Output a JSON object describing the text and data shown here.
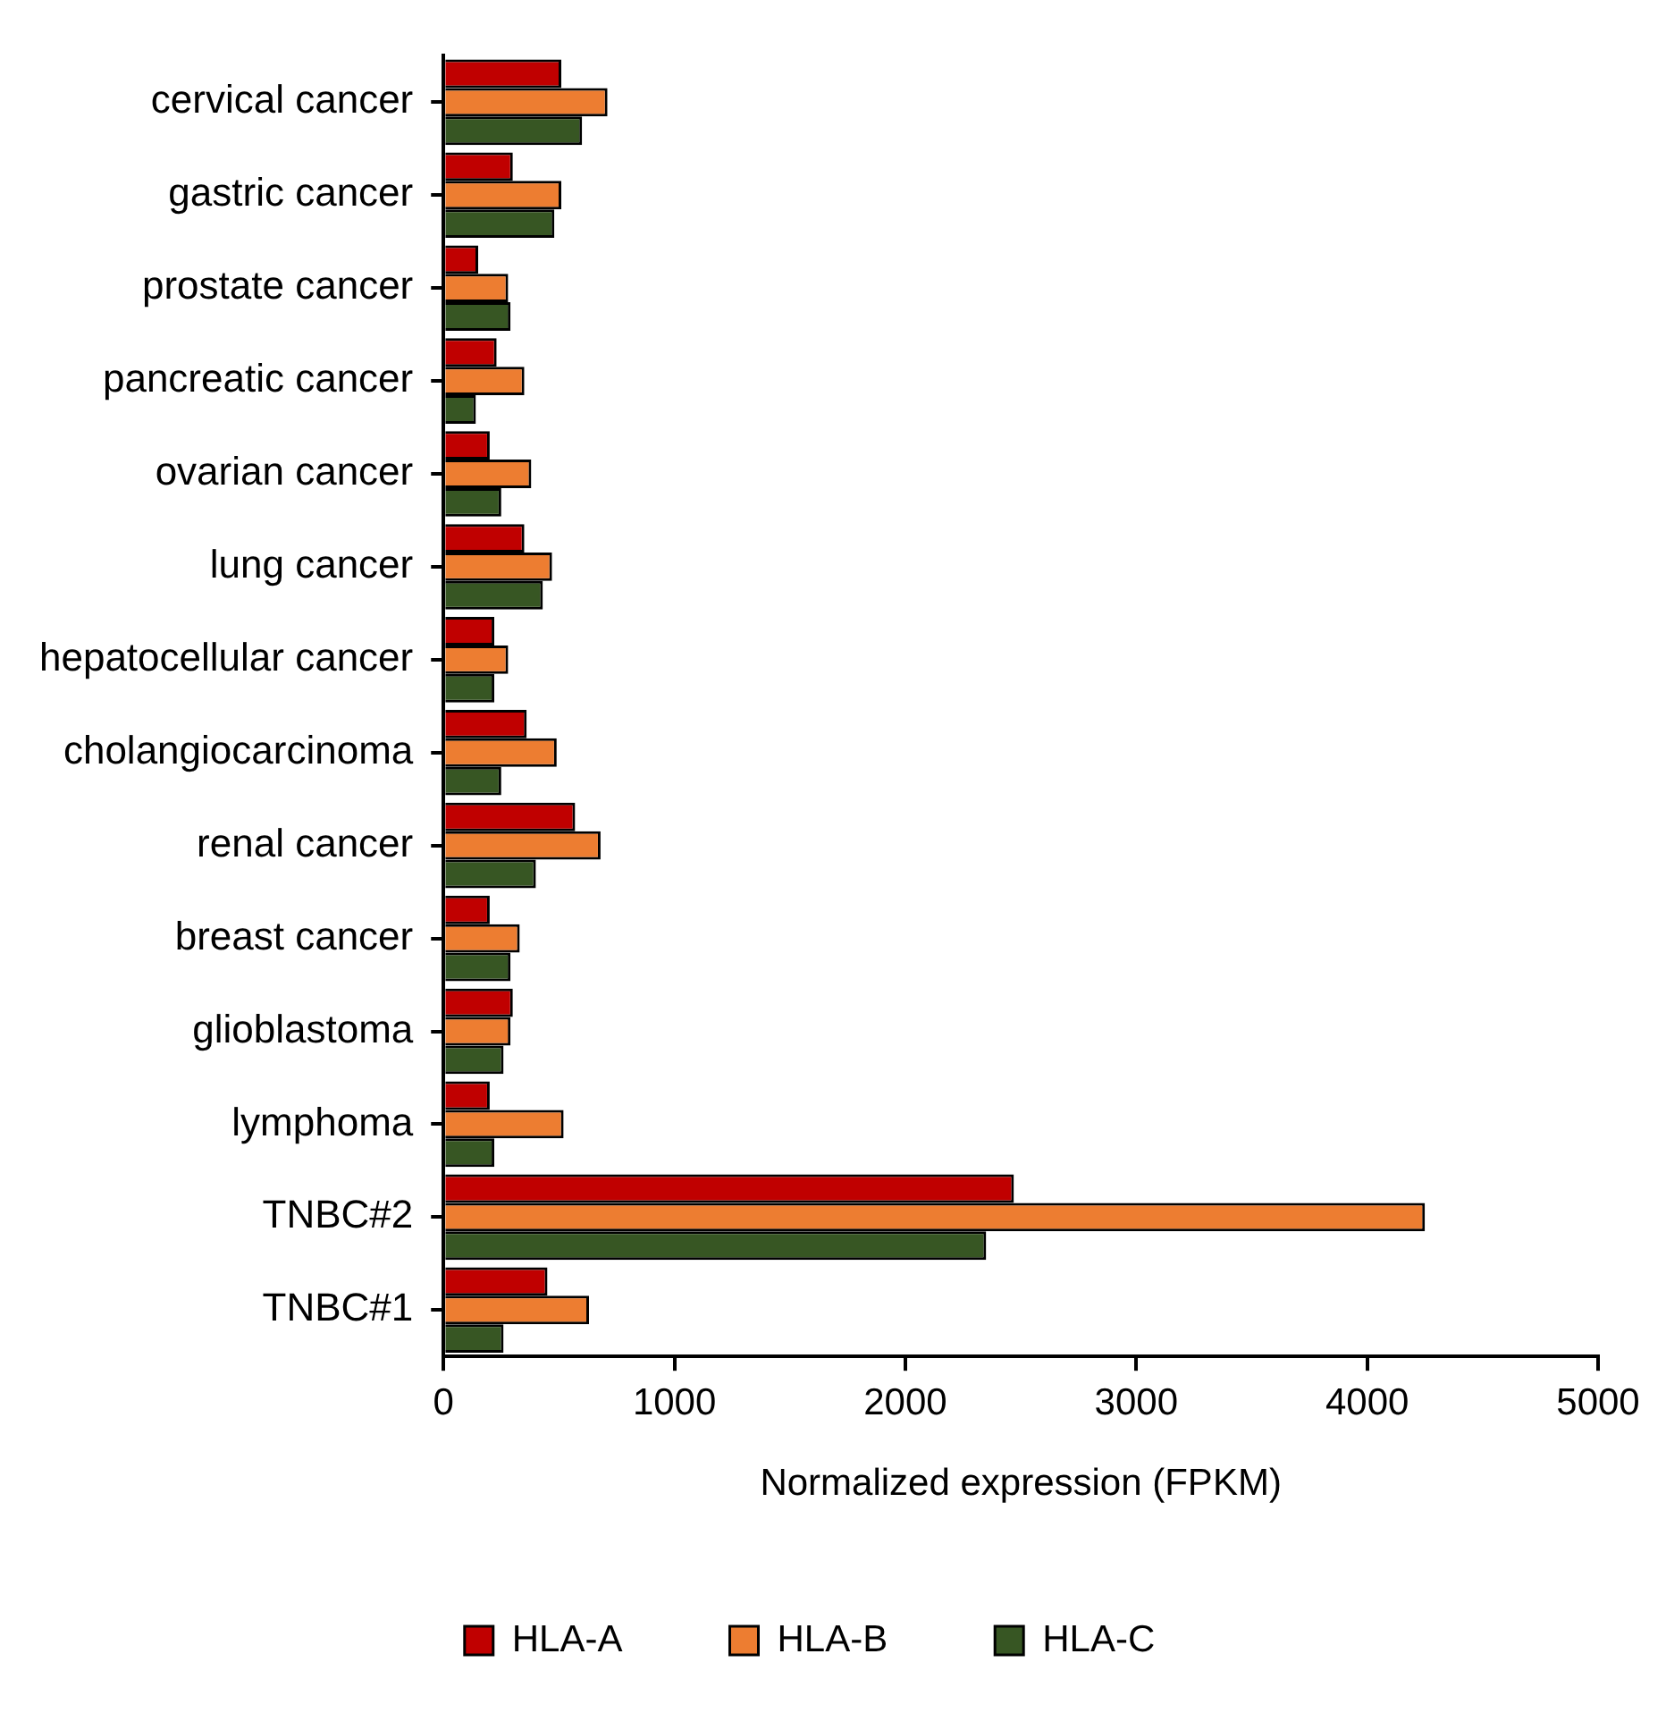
{
  "chart_data": {
    "type": "bar",
    "orientation": "horizontal",
    "xlabel": "Normalized expression (FPKM)",
    "categories": [
      "cervical cancer",
      "gastric cancer",
      "prostate cancer",
      "pancreatic cancer",
      "ovarian cancer",
      "lung cancer",
      "hepatocellular cancer",
      "cholangiocarcinoma",
      "renal cancer",
      "breast cancer",
      "glioblastoma",
      "lymphoma",
      "TNBC#2",
      "TNBC#1"
    ],
    "series": [
      {
        "name": "HLA-A",
        "color": "#c00000",
        "values": [
          510,
          300,
          150,
          230,
          200,
          350,
          220,
          360,
          570,
          200,
          300,
          200,
          2470,
          450
        ]
      },
      {
        "name": "HLA-B",
        "color": "#ed7d31",
        "values": [
          710,
          510,
          280,
          350,
          380,
          470,
          280,
          490,
          680,
          330,
          290,
          520,
          4250,
          630
        ]
      },
      {
        "name": "HLA-C",
        "color": "#375623",
        "values": [
          600,
          480,
          290,
          140,
          250,
          430,
          220,
          250,
          400,
          290,
          260,
          220,
          2350,
          260
        ]
      }
    ],
    "xlim": [
      0,
      5000
    ],
    "xticks": [
      0,
      1000,
      2000,
      3000,
      4000,
      5000
    ],
    "grid": false,
    "legend": "bottom"
  }
}
